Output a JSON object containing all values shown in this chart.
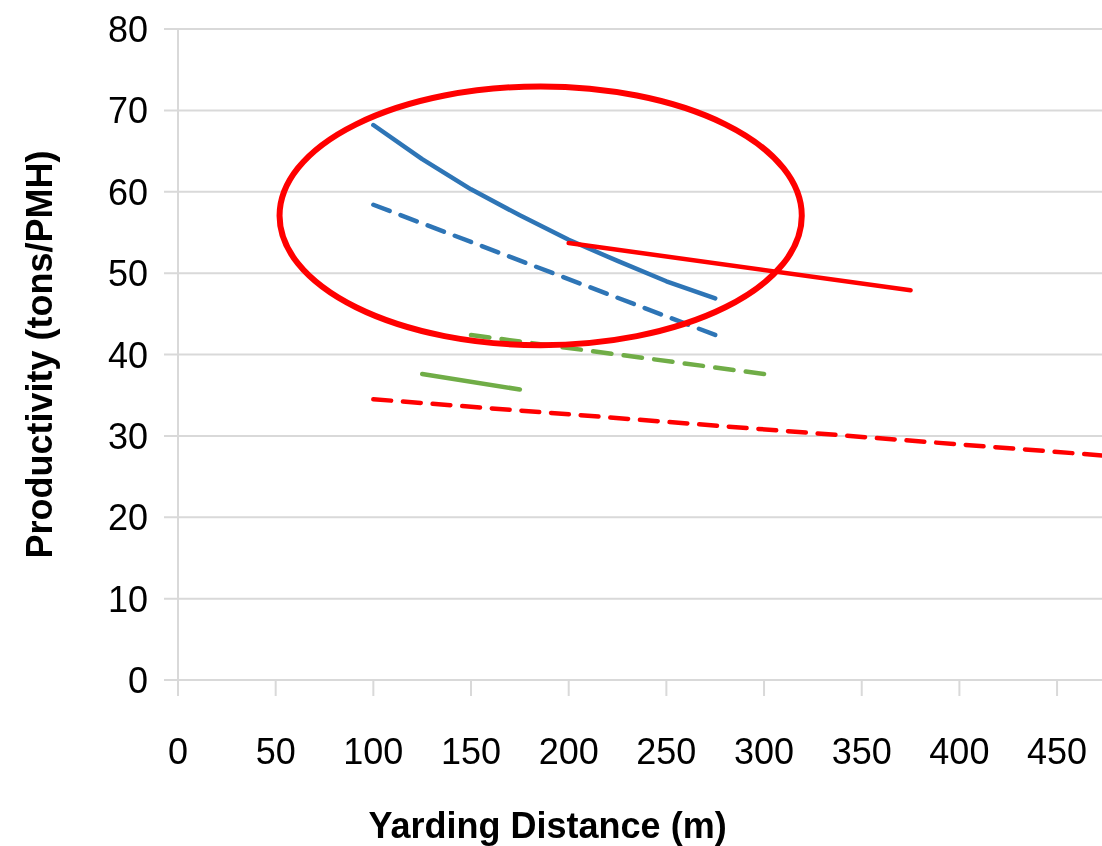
{
  "chart_data": {
    "type": "line",
    "xlabel": "Yarding Distance (m)",
    "ylabel": "Productivity (tons/PMH)",
    "xlim": [
      0,
      473
    ],
    "xticks": [
      0,
      50,
      100,
      150,
      200,
      250,
      300,
      350,
      400,
      450
    ],
    "ylim": [
      0,
      80
    ],
    "yticks": [
      0,
      10,
      20,
      30,
      40,
      50,
      60,
      70,
      80
    ],
    "grid": "y",
    "marker": "none",
    "series": [
      {
        "color": "#2e75b6",
        "line_style": "solid",
        "x": [
          100,
          125,
          150,
          175,
          200,
          225,
          250,
          275
        ],
        "values": [
          68.2,
          64.0,
          60.3,
          57.1,
          54.1,
          51.5,
          49.0,
          46.9
        ]
      },
      {
        "color": "#2e75b6",
        "line_style": "dashed",
        "x": [
          100,
          275
        ],
        "values": [
          58.4,
          42.4
        ]
      },
      {
        "color": "#ff0000",
        "line_style": "solid",
        "x": [
          200,
          375
        ],
        "values": [
          53.7,
          47.9
        ]
      },
      {
        "color": "#70ad47",
        "line_style": "dashed",
        "x": [
          150,
          300
        ],
        "values": [
          42.4,
          37.6
        ]
      },
      {
        "color": "#70ad47",
        "line_style": "solid",
        "x": [
          125,
          175
        ],
        "values": [
          37.6,
          35.7
        ]
      },
      {
        "color": "#ff0000",
        "line_style": "dashed",
        "x": [
          100,
          473
        ],
        "values": [
          34.5,
          27.6
        ]
      }
    ]
  }
}
